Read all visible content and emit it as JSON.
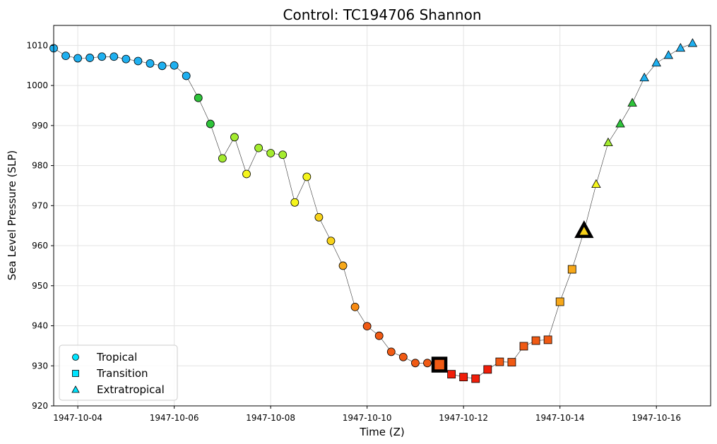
{
  "chart_data": {
    "type": "scatter",
    "title": "Control: TC194706 Shannon",
    "xlabel": "Time (Z)",
    "ylabel": "Sea Level Pressure (SLP)",
    "ylim": [
      920,
      1015
    ],
    "xlim": [
      "1947-10-03 12:00",
      "1947-10-17 03:00"
    ],
    "x_ticks": [
      "1947-10-04",
      "1947-10-06",
      "1947-10-08",
      "1947-10-10",
      "1947-10-12",
      "1947-10-14",
      "1947-10-16"
    ],
    "y_ticks": [
      920,
      930,
      940,
      950,
      960,
      970,
      980,
      990,
      1000,
      1010
    ],
    "grid": true,
    "legend_position": "lower-left",
    "legend": [
      {
        "label": "Tropical",
        "marker": "circle"
      },
      {
        "label": "Transition",
        "marker": "square"
      },
      {
        "label": "Extratropical",
        "marker": "triangle"
      }
    ],
    "highlighted_points": [
      {
        "time": "1947-10-11 12:00",
        "slp": 930.3,
        "marker": "square"
      },
      {
        "time": "1947-10-14 12:00",
        "slp": 963.6,
        "marker": "triangle"
      }
    ],
    "series": [
      {
        "time": "1947-10-03 12:00",
        "slp": 1009.3,
        "marker": "circle",
        "color": "#1fb0f0"
      },
      {
        "time": "1947-10-03 18:00",
        "slp": 1007.4,
        "marker": "circle",
        "color": "#1fb0f0"
      },
      {
        "time": "1947-10-04 00:00",
        "slp": 1006.8,
        "marker": "circle",
        "color": "#1fb0f0"
      },
      {
        "time": "1947-10-04 06:00",
        "slp": 1006.9,
        "marker": "circle",
        "color": "#1fb0f0"
      },
      {
        "time": "1947-10-04 12:00",
        "slp": 1007.2,
        "marker": "circle",
        "color": "#1fb0f0"
      },
      {
        "time": "1947-10-04 18:00",
        "slp": 1007.2,
        "marker": "circle",
        "color": "#1fb0f0"
      },
      {
        "time": "1947-10-05 00:00",
        "slp": 1006.6,
        "marker": "circle",
        "color": "#1fb0f0"
      },
      {
        "time": "1947-10-05 06:00",
        "slp": 1006.1,
        "marker": "circle",
        "color": "#1fb0f0"
      },
      {
        "time": "1947-10-05 12:00",
        "slp": 1005.5,
        "marker": "circle",
        "color": "#1fb0f0"
      },
      {
        "time": "1947-10-05 18:00",
        "slp": 1004.9,
        "marker": "circle",
        "color": "#1fb0f0"
      },
      {
        "time": "1947-10-06 00:00",
        "slp": 1005.0,
        "marker": "circle",
        "color": "#1fb0f0"
      },
      {
        "time": "1947-10-06 06:00",
        "slp": 1002.4,
        "marker": "circle",
        "color": "#1fb0f0"
      },
      {
        "time": "1947-10-06 12:00",
        "slp": 996.9,
        "marker": "circle",
        "color": "#2ec43a"
      },
      {
        "time": "1947-10-06 18:00",
        "slp": 990.4,
        "marker": "circle",
        "color": "#2ec43a"
      },
      {
        "time": "1947-10-07 00:00",
        "slp": 981.8,
        "marker": "circle",
        "color": "#a4ec2f"
      },
      {
        "time": "1947-10-07 06:00",
        "slp": 987.1,
        "marker": "circle",
        "color": "#a4ec2f"
      },
      {
        "time": "1947-10-07 12:00",
        "slp": 977.9,
        "marker": "circle",
        "color": "#f5f51c"
      },
      {
        "time": "1947-10-07 18:00",
        "slp": 984.4,
        "marker": "circle",
        "color": "#a4ec2f"
      },
      {
        "time": "1947-10-08 00:00",
        "slp": 983.1,
        "marker": "circle",
        "color": "#a4ec2f"
      },
      {
        "time": "1947-10-08 06:00",
        "slp": 982.7,
        "marker": "circle",
        "color": "#a4ec2f"
      },
      {
        "time": "1947-10-08 12:00",
        "slp": 970.8,
        "marker": "circle",
        "color": "#f5f51c"
      },
      {
        "time": "1947-10-08 18:00",
        "slp": 977.2,
        "marker": "circle",
        "color": "#f5f51c"
      },
      {
        "time": "1947-10-09 00:00",
        "slp": 967.1,
        "marker": "circle",
        "color": "#f7d21a"
      },
      {
        "time": "1947-10-09 06:00",
        "slp": 961.2,
        "marker": "circle",
        "color": "#f7d21a"
      },
      {
        "time": "1947-10-09 12:00",
        "slp": 955.0,
        "marker": "circle",
        "color": "#f7a81a"
      },
      {
        "time": "1947-10-09 18:00",
        "slp": 944.7,
        "marker": "circle",
        "color": "#f78a12"
      },
      {
        "time": "1947-10-10 00:00",
        "slp": 939.9,
        "marker": "circle",
        "color": "#f05a14"
      },
      {
        "time": "1947-10-10 06:00",
        "slp": 937.5,
        "marker": "circle",
        "color": "#f05a14"
      },
      {
        "time": "1947-10-10 12:00",
        "slp": 933.5,
        "marker": "circle",
        "color": "#f05a14"
      },
      {
        "time": "1947-10-10 18:00",
        "slp": 932.2,
        "marker": "circle",
        "color": "#f05a14"
      },
      {
        "time": "1947-10-11 00:00",
        "slp": 930.7,
        "marker": "circle",
        "color": "#f05a14"
      },
      {
        "time": "1947-10-11 06:00",
        "slp": 930.7,
        "marker": "circle",
        "color": "#f05a14"
      },
      {
        "time": "1947-10-11 12:00",
        "slp": 930.3,
        "marker": "square",
        "color": "#f05a14"
      },
      {
        "time": "1947-10-11 18:00",
        "slp": 927.9,
        "marker": "square",
        "color": "#f01e0a"
      },
      {
        "time": "1947-10-12 00:00",
        "slp": 927.2,
        "marker": "square",
        "color": "#f01e0a"
      },
      {
        "time": "1947-10-12 06:00",
        "slp": 926.8,
        "marker": "square",
        "color": "#f01e0a"
      },
      {
        "time": "1947-10-12 12:00",
        "slp": 929.1,
        "marker": "square",
        "color": "#f01e0a"
      },
      {
        "time": "1947-10-12 18:00",
        "slp": 931.0,
        "marker": "square",
        "color": "#f05a14"
      },
      {
        "time": "1947-10-13 00:00",
        "slp": 930.9,
        "marker": "square",
        "color": "#f05a14"
      },
      {
        "time": "1947-10-13 06:00",
        "slp": 934.9,
        "marker": "square",
        "color": "#f05a14"
      },
      {
        "time": "1947-10-13 12:00",
        "slp": 936.3,
        "marker": "square",
        "color": "#f05a14"
      },
      {
        "time": "1947-10-13 18:00",
        "slp": 936.5,
        "marker": "square",
        "color": "#f05a14"
      },
      {
        "time": "1947-10-14 00:00",
        "slp": 946.0,
        "marker": "square",
        "color": "#f7a81a"
      },
      {
        "time": "1947-10-14 06:00",
        "slp": 954.1,
        "marker": "square",
        "color": "#f7a81a"
      },
      {
        "time": "1947-10-14 12:00",
        "slp": 963.6,
        "marker": "triangle",
        "color": "#f7d21a"
      },
      {
        "time": "1947-10-14 18:00",
        "slp": 975.3,
        "marker": "triangle",
        "color": "#f5f51c"
      },
      {
        "time": "1947-10-15 00:00",
        "slp": 985.7,
        "marker": "triangle",
        "color": "#a4ec2f"
      },
      {
        "time": "1947-10-15 06:00",
        "slp": 990.4,
        "marker": "triangle",
        "color": "#2ec43a"
      },
      {
        "time": "1947-10-15 12:00",
        "slp": 995.6,
        "marker": "triangle",
        "color": "#2ec43a"
      },
      {
        "time": "1947-10-15 18:00",
        "slp": 1001.9,
        "marker": "triangle",
        "color": "#1fb0f0"
      },
      {
        "time": "1947-10-16 00:00",
        "slp": 1005.6,
        "marker": "triangle",
        "color": "#1fb0f0"
      },
      {
        "time": "1947-10-16 06:00",
        "slp": 1007.5,
        "marker": "triangle",
        "color": "#1fb0f0"
      },
      {
        "time": "1947-10-16 12:00",
        "slp": 1009.3,
        "marker": "triangle",
        "color": "#1fb0f0"
      },
      {
        "time": "1947-10-16 18:00",
        "slp": 1010.5,
        "marker": "triangle",
        "color": "#1fb0f0"
      }
    ]
  },
  "legend_color": "#00e5ff"
}
